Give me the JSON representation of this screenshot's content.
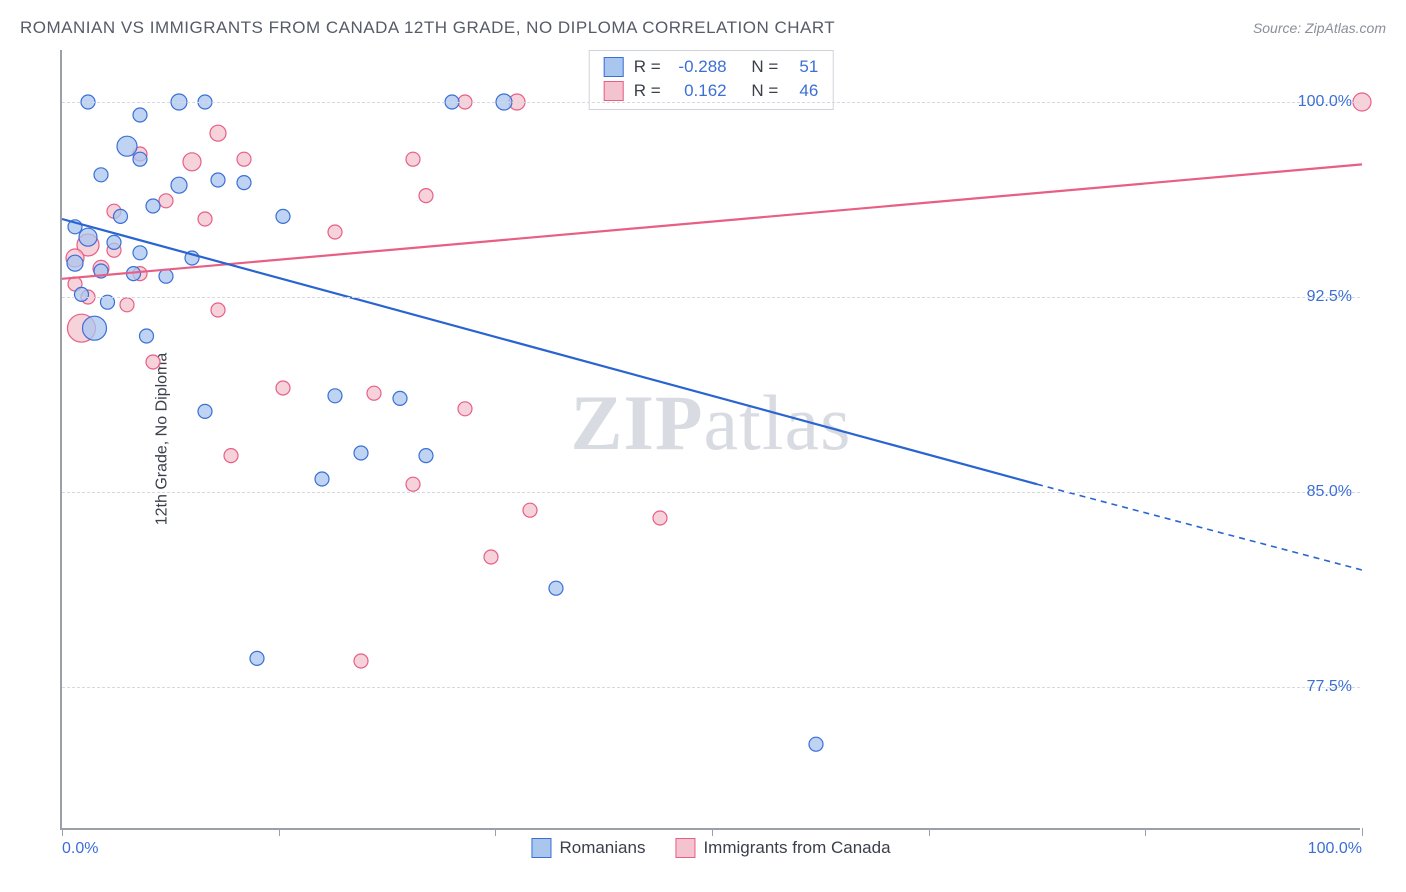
{
  "title": "ROMANIAN VS IMMIGRANTS FROM CANADA 12TH GRADE, NO DIPLOMA CORRELATION CHART",
  "source_label": "Source: ZipAtlas.com",
  "watermark": {
    "bold": "ZIP",
    "rest": "atlas"
  },
  "ylabel": "12th Grade, No Diploma",
  "chart": {
    "type": "scatter-with-regression",
    "background_color": "#ffffff",
    "grid_color": "#d6d9de",
    "axis_color": "#9aa0aa",
    "title_fontsize": 17,
    "title_color": "#555b68",
    "label_fontsize": 16,
    "label_color": "#3a3f4a",
    "tick_label_color": "#3b6fd6",
    "tick_label_fontsize": 16,
    "xlim": [
      0,
      100
    ],
    "ylim": [
      72,
      102
    ],
    "x_ticks": [
      0,
      16.67,
      33.33,
      50,
      66.67,
      83.33,
      100
    ],
    "x_tick_labels": {
      "0": "0.0%",
      "100": "100.0%"
    },
    "y_ticks": [
      77.5,
      85.0,
      92.5,
      100.0
    ],
    "y_tick_labels": [
      "77.5%",
      "85.0%",
      "92.5%",
      "100.0%"
    ],
    "series": [
      {
        "name": "Romanians",
        "marker_fill": "#a9c6ef",
        "marker_stroke": "#3b6fd6",
        "marker_opacity": 0.75,
        "marker_stroke_width": 1.2,
        "line_color": "#2a64d0",
        "line_width": 2.2,
        "r_label": "R =",
        "r_value": "-0.288",
        "n_label": "N =",
        "n_value": "51",
        "regression": {
          "x1": 0,
          "y1": 95.5,
          "x2": 75,
          "y2": 85.3,
          "dash_x2": 100,
          "dash_y2": 82.0
        },
        "points": [
          {
            "x": 2,
            "y": 100,
            "r": 7
          },
          {
            "x": 9,
            "y": 100,
            "r": 8
          },
          {
            "x": 11,
            "y": 100,
            "r": 7
          },
          {
            "x": 30,
            "y": 100,
            "r": 7
          },
          {
            "x": 34,
            "y": 100,
            "r": 8
          },
          {
            "x": 6,
            "y": 99.5,
            "r": 7
          },
          {
            "x": 5,
            "y": 98.3,
            "r": 10
          },
          {
            "x": 3,
            "y": 97.2,
            "r": 7
          },
          {
            "x": 9,
            "y": 96.8,
            "r": 8
          },
          {
            "x": 12,
            "y": 97.0,
            "r": 7
          },
          {
            "x": 14,
            "y": 96.9,
            "r": 7
          },
          {
            "x": 7,
            "y": 96.0,
            "r": 7
          },
          {
            "x": 17,
            "y": 95.6,
            "r": 7
          },
          {
            "x": 2,
            "y": 94.8,
            "r": 9
          },
          {
            "x": 4,
            "y": 94.6,
            "r": 7
          },
          {
            "x": 6,
            "y": 94.2,
            "r": 7
          },
          {
            "x": 1,
            "y": 93.8,
            "r": 8
          },
          {
            "x": 3,
            "y": 93.5,
            "r": 7
          },
          {
            "x": 5.5,
            "y": 93.4,
            "r": 7
          },
          {
            "x": 8,
            "y": 93.3,
            "r": 7
          },
          {
            "x": 1.5,
            "y": 92.6,
            "r": 7
          },
          {
            "x": 3.5,
            "y": 92.3,
            "r": 7
          },
          {
            "x": 6.5,
            "y": 91.0,
            "r": 7
          },
          {
            "x": 2.5,
            "y": 91.3,
            "r": 12
          },
          {
            "x": 21,
            "y": 88.7,
            "r": 7
          },
          {
            "x": 26,
            "y": 88.6,
            "r": 7
          },
          {
            "x": 11,
            "y": 88.1,
            "r": 7
          },
          {
            "x": 23,
            "y": 86.5,
            "r": 7
          },
          {
            "x": 28,
            "y": 86.4,
            "r": 7
          },
          {
            "x": 20,
            "y": 85.5,
            "r": 7
          },
          {
            "x": 38,
            "y": 81.3,
            "r": 7
          },
          {
            "x": 15,
            "y": 78.6,
            "r": 7
          },
          {
            "x": 58,
            "y": 75.3,
            "r": 7
          },
          {
            "x": 1,
            "y": 95.2,
            "r": 7
          },
          {
            "x": 4.5,
            "y": 95.6,
            "r": 7
          },
          {
            "x": 10,
            "y": 94.0,
            "r": 7
          },
          {
            "x": 6,
            "y": 97.8,
            "r": 7
          }
        ]
      },
      {
        "name": "Immigrants from Canada",
        "marker_fill": "#f3c3cf",
        "marker_stroke": "#e85f86",
        "marker_opacity": 0.75,
        "marker_stroke_width": 1.2,
        "line_color": "#e85f86",
        "line_width": 2.2,
        "r_label": "R =",
        "r_value": "0.162",
        "n_label": "N =",
        "n_value": "46",
        "regression": {
          "x1": 0,
          "y1": 93.2,
          "x2": 100,
          "y2": 97.6
        },
        "points": [
          {
            "x": 31,
            "y": 100,
            "r": 7
          },
          {
            "x": 35,
            "y": 100,
            "r": 8
          },
          {
            "x": 100,
            "y": 100,
            "r": 9
          },
          {
            "x": 12,
            "y": 98.8,
            "r": 8
          },
          {
            "x": 14,
            "y": 97.8,
            "r": 7
          },
          {
            "x": 10,
            "y": 97.7,
            "r": 9
          },
          {
            "x": 6,
            "y": 98.0,
            "r": 7
          },
          {
            "x": 27,
            "y": 97.8,
            "r": 7
          },
          {
            "x": 11,
            "y": 95.5,
            "r": 7
          },
          {
            "x": 28,
            "y": 96.4,
            "r": 7
          },
          {
            "x": 21,
            "y": 95.0,
            "r": 7
          },
          {
            "x": 2,
            "y": 94.5,
            "r": 11
          },
          {
            "x": 1,
            "y": 94.0,
            "r": 9
          },
          {
            "x": 4,
            "y": 94.3,
            "r": 7
          },
          {
            "x": 3,
            "y": 93.6,
            "r": 8
          },
          {
            "x": 6,
            "y": 93.4,
            "r": 7
          },
          {
            "x": 2,
            "y": 92.5,
            "r": 7
          },
          {
            "x": 5,
            "y": 92.2,
            "r": 7
          },
          {
            "x": 12,
            "y": 92.0,
            "r": 7
          },
          {
            "x": 1.5,
            "y": 91.3,
            "r": 14
          },
          {
            "x": 7,
            "y": 90.0,
            "r": 7
          },
          {
            "x": 17,
            "y": 89.0,
            "r": 7
          },
          {
            "x": 24,
            "y": 88.8,
            "r": 7
          },
          {
            "x": 31,
            "y": 88.2,
            "r": 7
          },
          {
            "x": 13,
            "y": 86.4,
            "r": 7
          },
          {
            "x": 27,
            "y": 85.3,
            "r": 7
          },
          {
            "x": 36,
            "y": 84.3,
            "r": 7
          },
          {
            "x": 46,
            "y": 84.0,
            "r": 7
          },
          {
            "x": 33,
            "y": 82.5,
            "r": 7
          },
          {
            "x": 23,
            "y": 78.5,
            "r": 7
          },
          {
            "x": 4,
            "y": 95.8,
            "r": 7
          },
          {
            "x": 8,
            "y": 96.2,
            "r": 7
          },
          {
            "x": 1,
            "y": 93.0,
            "r": 7
          }
        ]
      }
    ],
    "bottom_legend": [
      {
        "label": "Romanians",
        "fill": "#a9c6ef",
        "stroke": "#3b6fd6"
      },
      {
        "label": "Immigrants from Canada",
        "fill": "#f3c3cf",
        "stroke": "#e85f86"
      }
    ]
  }
}
